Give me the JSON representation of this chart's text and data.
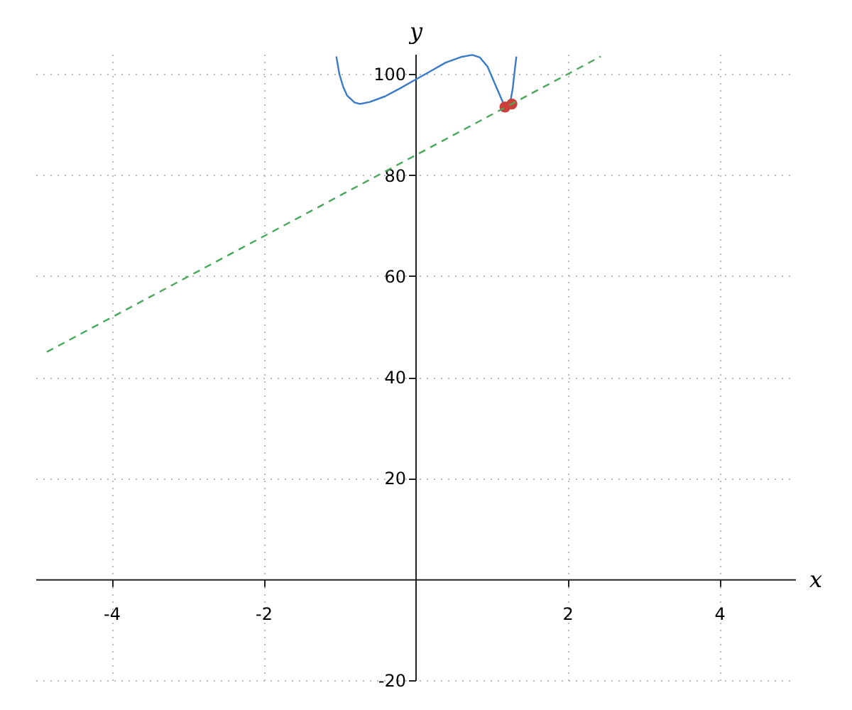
{
  "chart_data": {
    "type": "line",
    "xlabel": "x",
    "ylabel": "y",
    "xlim": [
      -5,
      5
    ],
    "ylim": [
      -20,
      104
    ],
    "xticks": [
      -4,
      -2,
      2,
      4
    ],
    "yticks": [
      -20,
      20,
      40,
      60,
      80,
      100
    ],
    "grid": true,
    "series": [
      {
        "color": "#3a7bc8",
        "x": [
          -1.04,
          -1.0,
          -0.95,
          -0.9,
          -0.8,
          -0.73,
          -0.6,
          -0.4,
          -0.2,
          0,
          0.2,
          0.4,
          0.6,
          0.75,
          0.85,
          0.95,
          1.05,
          1.15,
          1.2,
          1.25,
          1.28,
          1.31,
          1.33
        ],
        "values": [
          103.5,
          100,
          97.5,
          95.8,
          94.4,
          94.1,
          94.5,
          95.6,
          97.2,
          98.9,
          100.6,
          102.3,
          103.4,
          103.8,
          103.3,
          101.5,
          98,
          94.5,
          93.6,
          94.5,
          97,
          101,
          103.5
        ]
      },
      {
        "type": "scatter",
        "color": "#cc3f3a",
        "x": [
          1.18,
          1.27
        ],
        "values": [
          93.5,
          94.1
        ]
      },
      {
        "color": "#4aa85a",
        "line_style": "dashed",
        "x": [
          -4.85,
          2.44
        ],
        "values": [
          45,
          103.5
        ]
      }
    ]
  }
}
